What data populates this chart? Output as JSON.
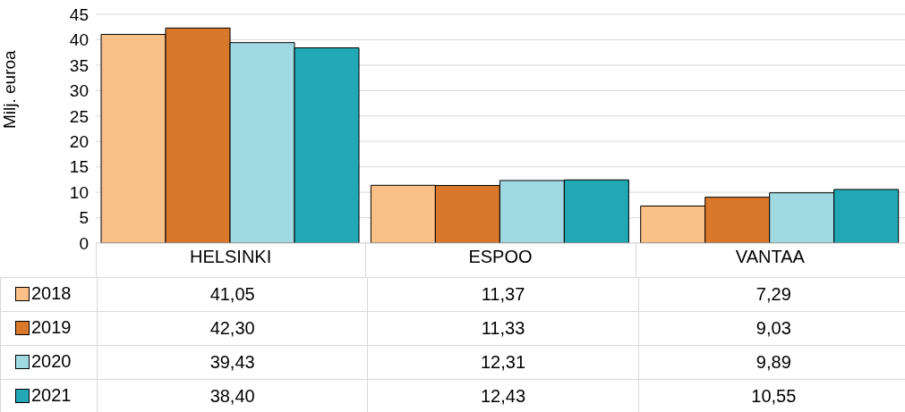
{
  "chart_data": {
    "type": "bar",
    "ylabel": "Milj. euroa",
    "categories": [
      "HELSINKI",
      "ESPOO",
      "VANTAA"
    ],
    "series": [
      {
        "name": "2018",
        "color": "#fbbf88",
        "values": [
          41.05,
          11.37,
          7.29
        ],
        "value_labels": [
          "41,05",
          "11,37",
          "7,29"
        ]
      },
      {
        "name": "2019",
        "color": "#d9782a",
        "values": [
          42.3,
          11.33,
          9.03
        ],
        "value_labels": [
          "42,30",
          "11,33",
          "9,03"
        ]
      },
      {
        "name": "2020",
        "color": "#a1d9e3",
        "values": [
          39.43,
          12.31,
          9.89
        ],
        "value_labels": [
          "39,43",
          "12,31",
          "9,89"
        ]
      },
      {
        "name": "2021",
        "color": "#22a8b5",
        "values": [
          38.4,
          12.43,
          10.55
        ],
        "value_labels": [
          "38,40",
          "12,43",
          "10,55"
        ]
      }
    ],
    "ylim": [
      0,
      45
    ],
    "yticks": [
      0,
      5,
      10,
      15,
      20,
      25,
      30,
      35,
      40,
      45
    ],
    "grid": "y",
    "legend": "left"
  }
}
